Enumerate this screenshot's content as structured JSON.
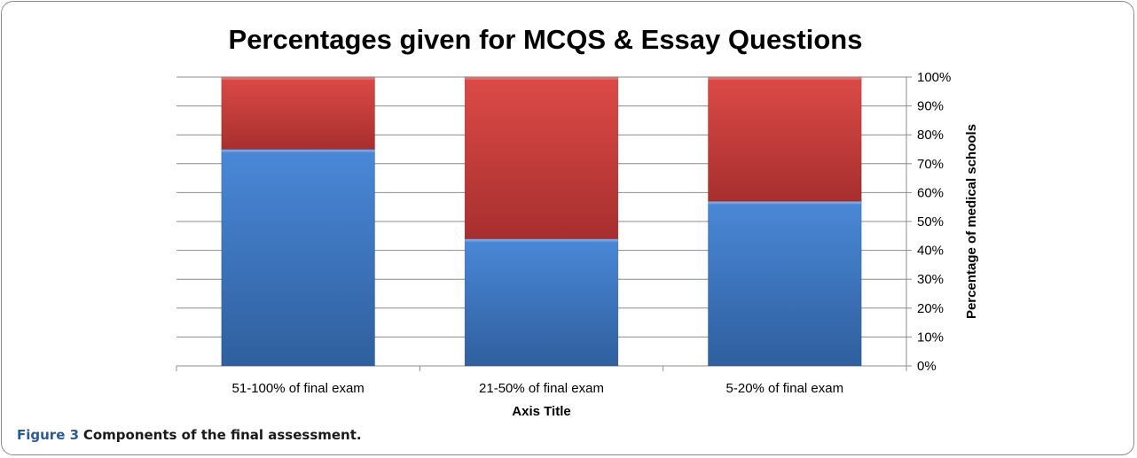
{
  "figure_caption": {
    "label": "Figure 3",
    "text": "Components of the final assessment."
  },
  "chart_data": {
    "type": "bar",
    "stacked": true,
    "title": "Percentages given for MCQS & Essay Questions",
    "xlabel": "Axis Title",
    "ylabel": "Percentage of medical schools",
    "categories": [
      "51-100% of final exam",
      "21-50% of final exam",
      "5-20% of final exam"
    ],
    "series": [
      {
        "values": [
          75,
          44,
          57
        ],
        "color": "#3d78c4"
      },
      {
        "values": [
          25,
          56,
          43
        ],
        "color": "#c23b3b"
      }
    ],
    "ylim": [
      0,
      100
    ],
    "yticks": [
      "0%",
      "10%",
      "20%",
      "30%",
      "40%",
      "50%",
      "60%",
      "70%",
      "80%",
      "90%",
      "100%"
    ],
    "y_axis_side": "right",
    "grid": true,
    "legend": "none"
  }
}
